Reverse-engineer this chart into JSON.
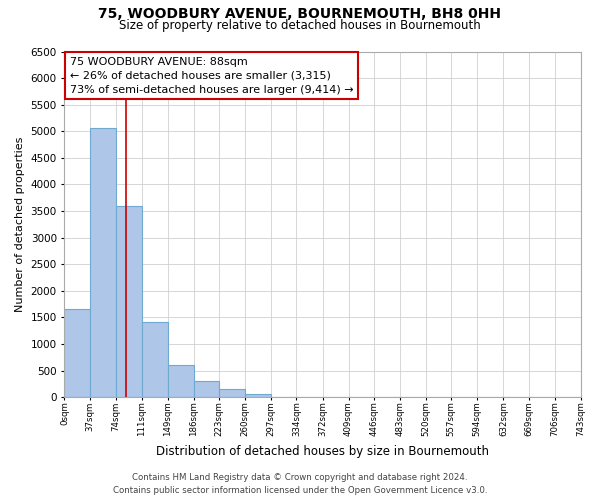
{
  "title": "75, WOODBURY AVENUE, BOURNEMOUTH, BH8 0HH",
  "subtitle": "Size of property relative to detached houses in Bournemouth",
  "xlabel": "Distribution of detached houses by size in Bournemouth",
  "ylabel": "Number of detached properties",
  "bar_edges": [
    0,
    37,
    74,
    111,
    149,
    186,
    223,
    260,
    297,
    334,
    372,
    409,
    446,
    483,
    520,
    557,
    594,
    632,
    669,
    706,
    743
  ],
  "bar_heights": [
    1650,
    5070,
    3590,
    1420,
    610,
    300,
    145,
    50,
    0,
    0,
    0,
    0,
    0,
    0,
    0,
    0,
    0,
    0,
    0,
    0
  ],
  "bar_color": "#aec6e8",
  "bar_edge_color": "#6fa8d0",
  "property_line_x": 88,
  "property_line_color": "#cc0000",
  "ylim": [
    0,
    6500
  ],
  "xlim": [
    0,
    743
  ],
  "annotation_title": "75 WOODBURY AVENUE: 88sqm",
  "annotation_line1": "← 26% of detached houses are smaller (3,315)",
  "annotation_line2": "73% of semi-detached houses are larger (9,414) →",
  "annotation_box_color": "#ffffff",
  "annotation_box_edge": "#cc0000",
  "tick_labels": [
    "0sqm",
    "37sqm",
    "74sqm",
    "111sqm",
    "149sqm",
    "186sqm",
    "223sqm",
    "260sqm",
    "297sqm",
    "334sqm",
    "372sqm",
    "409sqm",
    "446sqm",
    "483sqm",
    "520sqm",
    "557sqm",
    "594sqm",
    "632sqm",
    "669sqm",
    "706sqm",
    "743sqm"
  ],
  "tick_positions": [
    0,
    37,
    74,
    111,
    149,
    186,
    223,
    260,
    297,
    334,
    372,
    409,
    446,
    483,
    520,
    557,
    594,
    632,
    669,
    706,
    743
  ],
  "yticks": [
    0,
    500,
    1000,
    1500,
    2000,
    2500,
    3000,
    3500,
    4000,
    4500,
    5000,
    5500,
    6000,
    6500
  ],
  "footer_line1": "Contains HM Land Registry data © Crown copyright and database right 2024.",
  "footer_line2": "Contains public sector information licensed under the Open Government Licence v3.0.",
  "background_color": "#ffffff",
  "grid_color": "#d0d0d0"
}
